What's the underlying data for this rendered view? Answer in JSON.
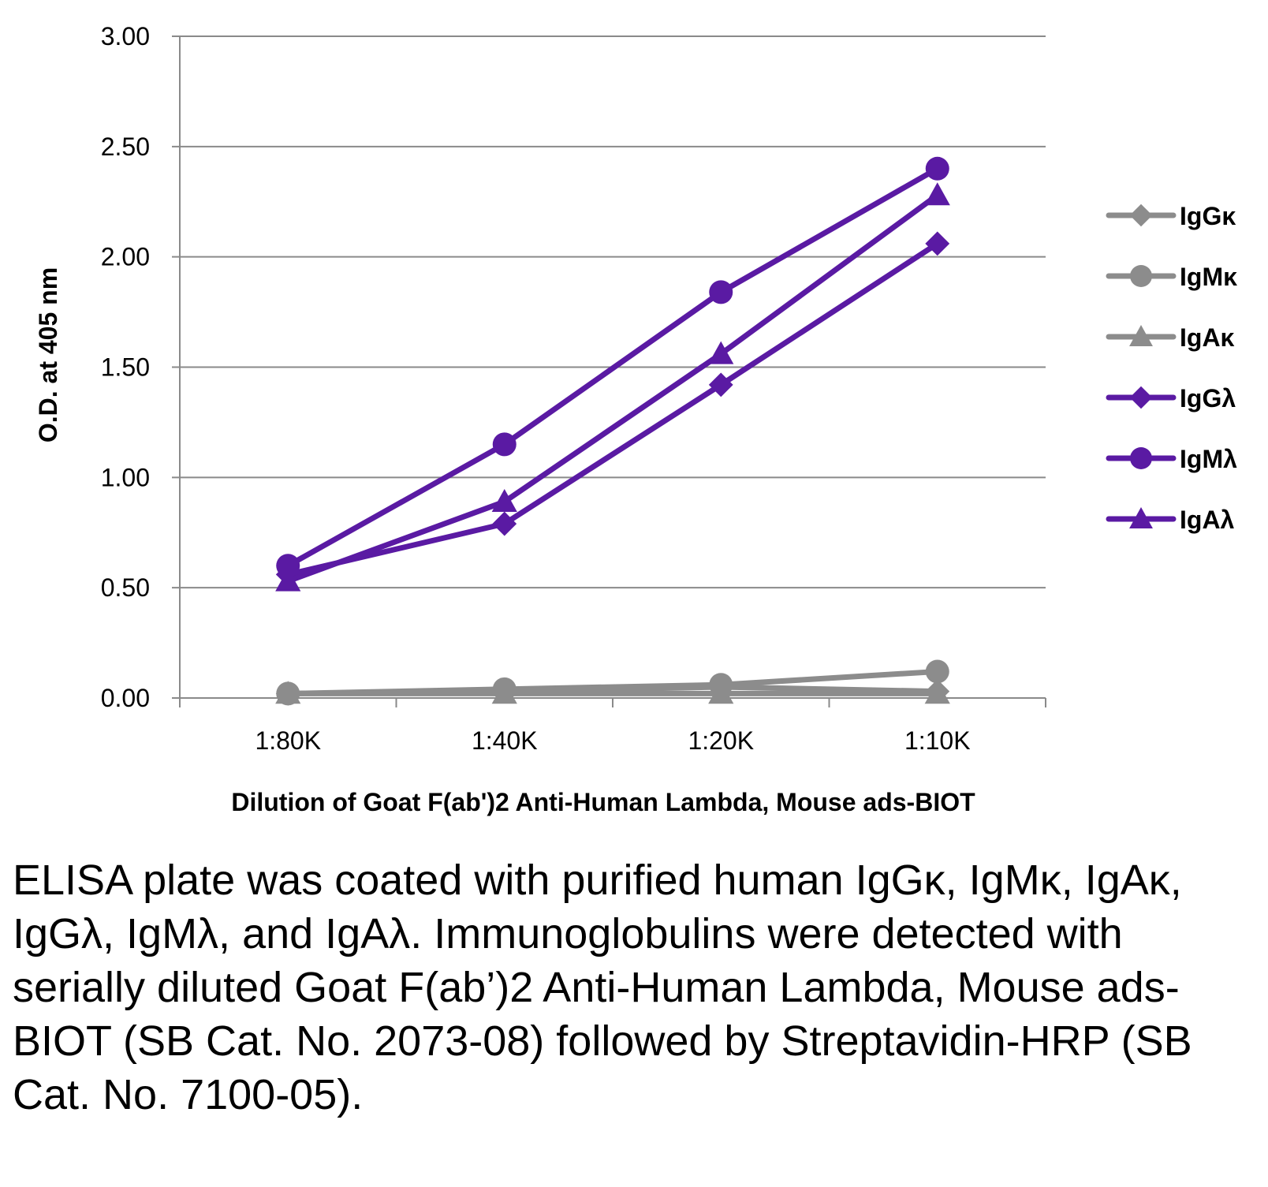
{
  "chart_data": {
    "type": "line",
    "categories": [
      "1:80K",
      "1:40K",
      "1:20K",
      "1:10K"
    ],
    "ylabel": "O.D. at 405 nm",
    "xlabel": "Dilution of Goat F(ab')2 Anti-Human Lambda, Mouse ads-BIOT",
    "ylim": [
      0,
      3
    ],
    "yticks": [
      "0.00",
      "0.50",
      "1.00",
      "1.50",
      "2.00",
      "2.50",
      "3.00"
    ],
    "grid": true,
    "legend_position": "right",
    "series": [
      {
        "name": "IgGκ",
        "marker": "diamond",
        "color": "#8c8c8c",
        "values": [
          0.02,
          0.03,
          0.05,
          0.03
        ]
      },
      {
        "name": "IgMκ",
        "marker": "circle",
        "color": "#8c8c8c",
        "values": [
          0.02,
          0.04,
          0.06,
          0.12
        ]
      },
      {
        "name": "IgAκ",
        "marker": "triangle",
        "color": "#8c8c8c",
        "values": [
          0.02,
          0.02,
          0.02,
          0.02
        ]
      },
      {
        "name": "IgGλ",
        "marker": "diamond",
        "color": "#5a1aa3",
        "values": [
          0.56,
          0.79,
          1.42,
          2.06
        ]
      },
      {
        "name": "IgMλ",
        "marker": "circle",
        "color": "#5a1aa3",
        "values": [
          0.6,
          1.15,
          1.84,
          2.4
        ]
      },
      {
        "name": "IgAλ",
        "marker": "triangle",
        "color": "#5a1aa3",
        "values": [
          0.53,
          0.89,
          1.56,
          2.28
        ]
      }
    ]
  },
  "caption": "ELISA plate was coated with purified human IgGκ, IgMκ, IgAκ, IgGλ, IgMλ, and IgAλ. Immunoglobulins were detected with serially diluted Goat F(ab’)2 Anti-Human Lambda, Mouse ads-BIOT (SB Cat. No. 2073-08) followed by Streptavidin-HRP (SB Cat. No. 7100-05)."
}
